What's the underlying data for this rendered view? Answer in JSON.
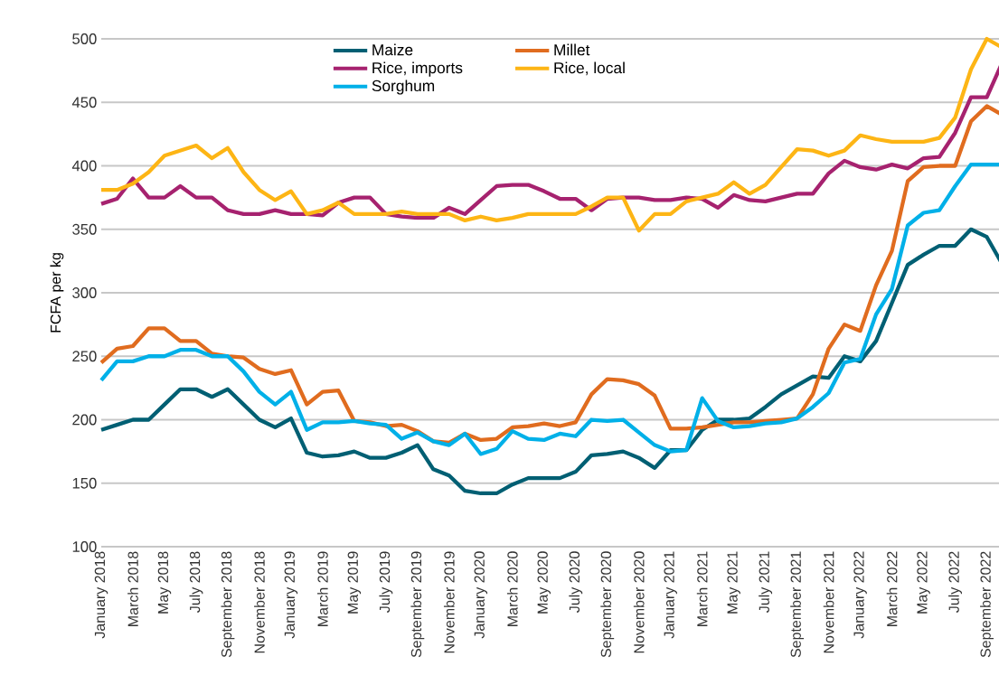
{
  "chart_data": {
    "type": "line",
    "ylabel": "FCFA per kg",
    "categories": [
      "January 2018",
      null,
      "March 2018",
      null,
      "May 2018",
      null,
      "July 2018",
      null,
      "September 2018",
      null,
      "November 2018",
      null,
      "January 2019",
      null,
      "March 2019",
      null,
      "May 2019",
      null,
      "July 2019",
      null,
      "September 2019",
      null,
      "November 2019",
      null,
      "January 2020",
      null,
      "March 2020",
      null,
      "May 2020",
      null,
      "July 2020",
      null,
      "September 2020",
      null,
      "November 2020",
      null,
      "January 2021",
      null,
      "March 2021",
      null,
      "May 2021",
      null,
      "July 2021",
      null,
      "September 2021",
      null,
      "November 2021",
      null,
      "January 2022",
      null,
      "March 2022",
      null,
      "May 2022",
      null,
      "July 2022",
      null,
      "September 2022",
      null
    ],
    "series": [
      {
        "name": "Maize",
        "color": "#005f73",
        "values": [
          192,
          196,
          200,
          200,
          212,
          224,
          224,
          218,
          224,
          212,
          200,
          194,
          201,
          174,
          171,
          172,
          175,
          170,
          170,
          174,
          180,
          161,
          156,
          144,
          142,
          142,
          149,
          154,
          154,
          154,
          159,
          172,
          173,
          175,
          170,
          162,
          176,
          176,
          192,
          200,
          200,
          201,
          210,
          220,
          227,
          234,
          233,
          250,
          246,
          262,
          292,
          322,
          330,
          337,
          337,
          350,
          344,
          322
        ]
      },
      {
        "name": "Millet",
        "color": "#e06c1f",
        "values": [
          245,
          256,
          258,
          272,
          272,
          262,
          262,
          252,
          250,
          249,
          240,
          236,
          239,
          212,
          222,
          223,
          199,
          198,
          195,
          196,
          191,
          183,
          182,
          189,
          184,
          185,
          194,
          195,
          197,
          195,
          198,
          220,
          232,
          231,
          228,
          219,
          193,
          193,
          194,
          196,
          198,
          198,
          199,
          200,
          201,
          220,
          256,
          275,
          270,
          306,
          333,
          388,
          399,
          400,
          400,
          435,
          447,
          440
        ]
      },
      {
        "name": "Rice, imports",
        "color": "#a6226f",
        "values": [
          370,
          374,
          390,
          375,
          375,
          384,
          375,
          375,
          365,
          362,
          362,
          365,
          362,
          362,
          361,
          371,
          375,
          375,
          362,
          360,
          359,
          359,
          367,
          362,
          373,
          384,
          385,
          385,
          380,
          374,
          374,
          365,
          374,
          375,
          375,
          373,
          373,
          375,
          374,
          367,
          377,
          373,
          372,
          375,
          378,
          378,
          394,
          404,
          399,
          397,
          401,
          398,
          406,
          407,
          426,
          454,
          454,
          482
        ]
      },
      {
        "name": "Rice, local",
        "color": "#fdb515",
        "values": [
          381,
          381,
          386,
          395,
          408,
          412,
          416,
          406,
          414,
          395,
          381,
          373,
          380,
          362,
          365,
          371,
          362,
          362,
          362,
          364,
          362,
          362,
          362,
          357,
          360,
          357,
          359,
          362,
          362,
          362,
          362,
          368,
          375,
          375,
          349,
          362,
          362,
          372,
          375,
          378,
          387,
          378,
          385,
          399,
          413,
          412,
          408,
          412,
          424,
          421,
          419,
          419,
          419,
          422,
          438,
          476,
          500,
          493
        ]
      },
      {
        "name": "Sorghum",
        "color": "#00b0e8",
        "values": [
          231,
          246,
          246,
          250,
          250,
          255,
          255,
          250,
          250,
          238,
          222,
          212,
          222,
          192,
          198,
          198,
          199,
          197,
          196,
          185,
          190,
          183,
          180,
          189,
          173,
          177,
          191,
          185,
          184,
          189,
          187,
          200,
          199,
          200,
          190,
          180,
          175,
          176,
          217,
          199,
          194,
          195,
          197,
          198,
          201,
          210,
          221,
          245,
          248,
          283,
          303,
          353,
          363,
          365,
          384,
          401,
          401,
          401
        ]
      }
    ],
    "ylim": [
      100,
      500
    ],
    "yticks": [
      100,
      150,
      200,
      250,
      300,
      350,
      400,
      450,
      500
    ],
    "grid": "y",
    "legend": "top",
    "marker": "none",
    "line_style": "solid"
  }
}
